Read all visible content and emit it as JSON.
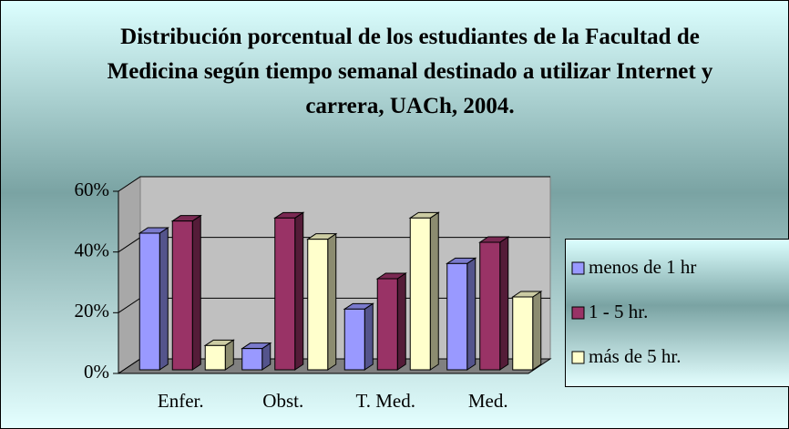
{
  "chart_data": {
    "type": "bar3d",
    "title": "Distribución porcentual de los estudiantes de la Facultad de Medicina según tiempo semanal destinado a utilizar Internet y carrera, UACh, 2004.",
    "categories": [
      "Enfer.",
      "Obst.",
      "T. Med.",
      "Med."
    ],
    "series": [
      {
        "name": "menos de 1 hr",
        "color": "#9999ff",
        "values": [
          45,
          7,
          20,
          35
        ]
      },
      {
        "name": "1 - 5 hr.",
        "color": "#993366",
        "values": [
          49,
          50,
          30,
          42
        ]
      },
      {
        "name": "más de 5 hr.",
        "color": "#ffffcc",
        "values": [
          8,
          43,
          50,
          24
        ]
      }
    ],
    "ylim": [
      0,
      60
    ],
    "yticks": [
      {
        "value": 0,
        "label": "0%"
      },
      {
        "value": 20,
        "label": "20%"
      },
      {
        "value": 40,
        "label": "40%"
      },
      {
        "value": 60,
        "label": "60%"
      }
    ],
    "grid": true,
    "legend": "right"
  }
}
